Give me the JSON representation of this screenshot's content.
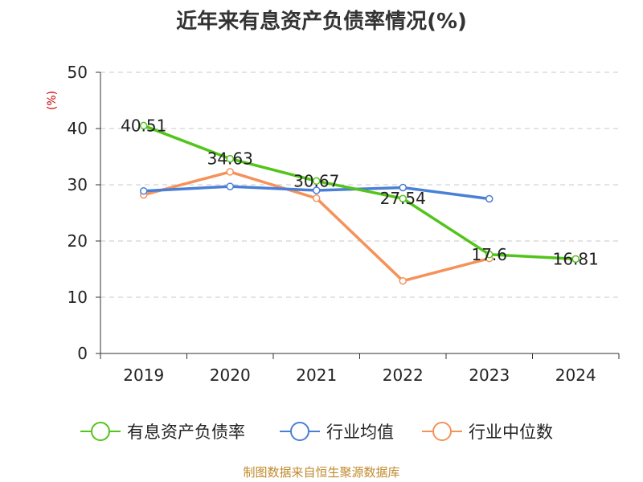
{
  "chart_data": {
    "type": "line",
    "title": "近年来有息资产负债率情况(%)",
    "ylabel": "(%)",
    "xlabel": "",
    "categories": [
      "2019",
      "2020",
      "2021",
      "2022",
      "2023",
      "2024"
    ],
    "ylim": [
      0,
      50
    ],
    "yticks": [
      0,
      10,
      20,
      30,
      40,
      50
    ],
    "grid": true,
    "legend_position": "bottom",
    "series": [
      {
        "name": "有息资产负债率",
        "color": "#52c41a",
        "values": [
          40.51,
          34.63,
          30.67,
          27.54,
          17.6,
          16.81
        ],
        "labels": [
          "40.51",
          "34.63",
          "30.67",
          "27.54",
          "17.6",
          "16.81"
        ]
      },
      {
        "name": "行业均值",
        "color": "#4a7fd6",
        "values": [
          28.9,
          29.7,
          29.0,
          29.5,
          27.5,
          null
        ]
      },
      {
        "name": "行业中位数",
        "color": "#f4925a",
        "values": [
          28.2,
          32.3,
          27.6,
          12.9,
          16.9,
          null
        ]
      }
    ]
  },
  "source": "制图数据来自恒生聚源数据库"
}
